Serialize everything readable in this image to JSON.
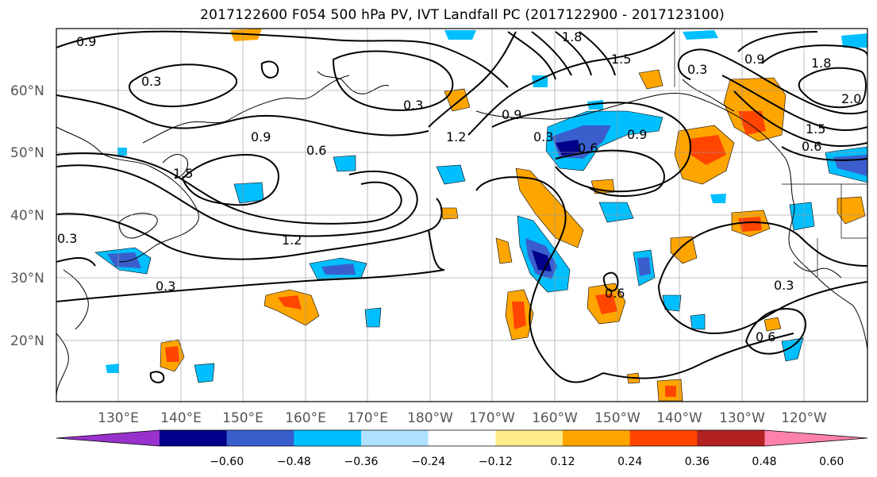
{
  "title": "2017122600 F054 500 hPa PV, IVT Landfall PC (2017122900 - 2017123100)",
  "lat_labels": [
    "60°N",
    "50°N",
    "40°N",
    "30°N",
    "20°N"
  ],
  "lon_labels": [
    "130°E",
    "140°E",
    "150°E",
    "160°E",
    "170°E",
    "180°W",
    "170°W",
    "160°W",
    "150°W",
    "140°W",
    "130°W",
    "120°W"
  ],
  "contour_labels": [
    "0.9",
    "0.3",
    "0.9",
    "0.6",
    "1.5",
    "0.3",
    "1.2",
    "0.3",
    "0.9",
    "0.3",
    "0.6",
    "0.9",
    "1.2",
    "1.5",
    "0.9",
    "0.3",
    "1.8",
    "1.5",
    "0.6",
    "2.0",
    "0.6",
    "0.3",
    "0.6",
    "0.3",
    "1.8"
  ],
  "colorbar": {
    "tick_labels": [
      "−0.60",
      "−0.48",
      "−0.36",
      "−0.24",
      "−0.12",
      "0.12",
      "0.24",
      "0.36",
      "0.48",
      "0.60"
    ],
    "colors": [
      "#9932cc",
      "#00008b",
      "#3a5fcd",
      "#00bfff",
      "#b0e2ff",
      "#ffffff",
      "#ffec8b",
      "#ffa500",
      "#ff4500",
      "#b22222",
      "#ff82ab"
    ]
  },
  "chart_data": {
    "type": "heatmap",
    "title": "2017122600 F054 500 hPa PV, IVT Landfall PC (2017122900 - 2017123100)",
    "xlabel": "",
    "ylabel": "",
    "lon_ticks": [
      "130°E",
      "140°E",
      "150°E",
      "160°E",
      "170°E",
      "180°W",
      "170°W",
      "160°W",
      "150°W",
      "140°W",
      "130°W",
      "120°W"
    ],
    "lat_ticks": [
      "20°N",
      "30°N",
      "40°N",
      "50°N",
      "60°N"
    ],
    "shading_levels": [
      -0.6,
      -0.48,
      -0.36,
      -0.24,
      -0.12,
      0.12,
      0.24,
      0.36,
      0.48,
      0.6
    ],
    "contour_levels": [
      0.3,
      0.6,
      0.9,
      1.2,
      1.5,
      1.8,
      2.0
    ],
    "grid": true
  }
}
